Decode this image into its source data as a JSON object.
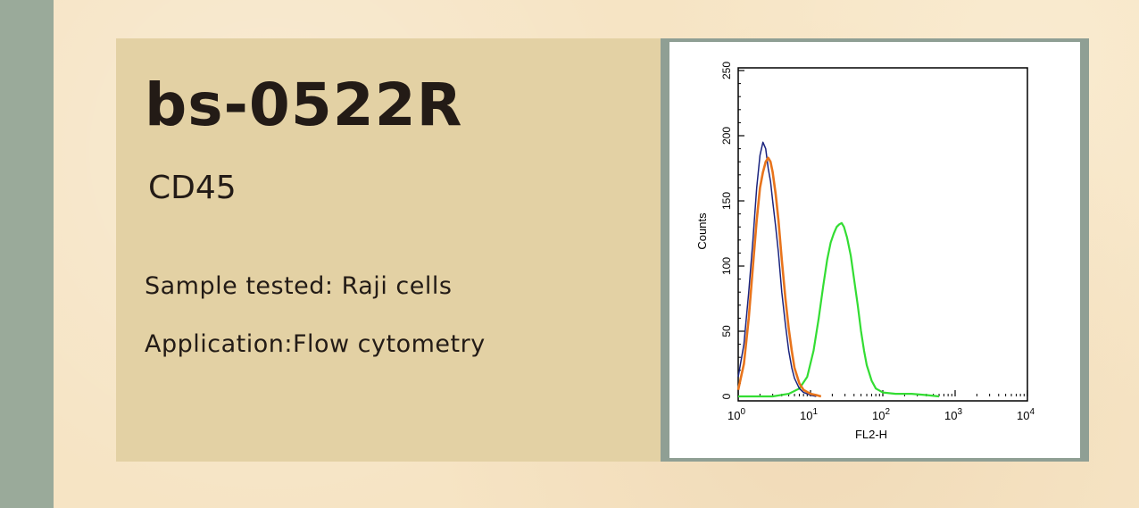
{
  "product": {
    "code": "bs-0522R",
    "target": "CD45",
    "sample": "Sample tested: Raji cells",
    "application": "Application:Flow cytometry"
  },
  "colors": {
    "panel": "#e3d1a4",
    "chart_frame": "#8f9f94",
    "series_blue": "#1a237e",
    "series_orange": "#e8741c",
    "series_green": "#33dd33"
  },
  "chart_data": {
    "type": "line",
    "xlabel": "FL2-H",
    "ylabel": "Counts",
    "x_scale": "log",
    "xlim": [
      1,
      10000
    ],
    "ylim": [
      0,
      250
    ],
    "x_ticks": [
      {
        "value": 1,
        "base": "10",
        "exp": "0"
      },
      {
        "value": 10,
        "base": "10",
        "exp": "1"
      },
      {
        "value": 100,
        "base": "10",
        "exp": "2"
      },
      {
        "value": 1000,
        "base": "10",
        "exp": "3"
      },
      {
        "value": 10000,
        "base": "10",
        "exp": "4"
      }
    ],
    "y_ticks": [
      0,
      50,
      100,
      150,
      200,
      250
    ],
    "grid": false,
    "legend": "none",
    "series": [
      {
        "color": "#1a237e",
        "x": [
          1.0,
          1.2,
          1.4,
          1.6,
          1.8,
          2.0,
          2.2,
          2.4,
          2.6,
          2.8,
          3.0,
          3.3,
          3.6,
          4.0,
          4.5,
          5.0,
          5.5,
          6.0,
          7.0,
          8.0,
          10.0,
          12.0
        ],
        "y": [
          15,
          40,
          80,
          120,
          160,
          185,
          195,
          190,
          175,
          165,
          150,
          130,
          110,
          80,
          55,
          35,
          22,
          14,
          6,
          3,
          1,
          0
        ]
      },
      {
        "color": "#e8741c",
        "x": [
          1.0,
          1.2,
          1.4,
          1.6,
          1.8,
          2.0,
          2.2,
          2.4,
          2.6,
          2.8,
          3.0,
          3.3,
          3.6,
          4.0,
          4.5,
          5.0,
          5.5,
          6.0,
          7.0,
          8.0,
          10.0,
          12.0,
          14.0
        ],
        "y": [
          5,
          25,
          60,
          100,
          135,
          160,
          172,
          180,
          183,
          180,
          172,
          155,
          135,
          105,
          75,
          52,
          35,
          22,
          10,
          5,
          2,
          1,
          0
        ]
      },
      {
        "color": "#33dd33",
        "x": [
          1.0,
          3.0,
          5.0,
          7.0,
          9.0,
          11.0,
          13.0,
          15.0,
          17.0,
          19.0,
          21.0,
          23.0,
          25.0,
          27.0,
          29.0,
          32.0,
          36.0,
          40.0,
          45.0,
          50.0,
          55.0,
          60.0,
          70.0,
          80.0,
          100.0,
          150.0,
          250.0,
          400.0,
          600.0
        ],
        "y": [
          0,
          0,
          2,
          6,
          15,
          35,
          60,
          85,
          105,
          118,
          125,
          130,
          132,
          133,
          130,
          122,
          108,
          90,
          70,
          50,
          35,
          24,
          12,
          6,
          3,
          2,
          2,
          1,
          0
        ]
      }
    ]
  }
}
